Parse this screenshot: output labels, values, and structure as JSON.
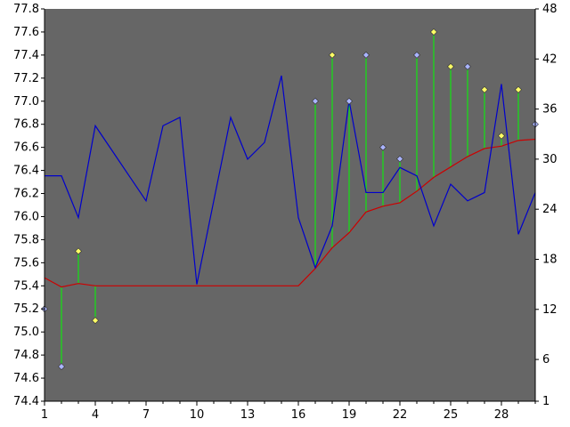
{
  "colors": {
    "background": "#ffffff",
    "plot_area": "#666666",
    "line_series": "#0000cc",
    "average_line": "#cc0000",
    "stems": "#00ff00",
    "marker_up": "#ffff66",
    "marker_down": "#aab4ff"
  },
  "chart_data": {
    "type": "line",
    "title": "",
    "xlabel": "",
    "ylabel_left": "",
    "ylabel_right": "",
    "x": [
      1,
      2,
      3,
      4,
      5,
      6,
      7,
      8,
      9,
      10,
      11,
      12,
      13,
      14,
      15,
      16,
      17,
      18,
      19,
      20,
      21,
      22,
      23,
      24,
      25,
      26,
      27,
      28,
      29,
      30
    ],
    "x_ticks": [
      1,
      4,
      7,
      10,
      13,
      16,
      19,
      22,
      25,
      28
    ],
    "x_range": [
      1,
      30
    ],
    "y_left_range": [
      74.4,
      77.8
    ],
    "y_left_ticks": [
      "74.4",
      "74.6",
      "74.8",
      "75.0",
      "75.2",
      "75.4",
      "75.6",
      "75.8",
      "76.0",
      "76.2",
      "76.4",
      "76.6",
      "76.8",
      "77.0",
      "77.2",
      "77.4",
      "77.6",
      "77.8"
    ],
    "y_right_range": [
      1,
      48
    ],
    "y_right_ticks": [
      "1",
      "6",
      "12",
      "18",
      "24",
      "30",
      "36",
      "42",
      "48"
    ],
    "grid": false,
    "legend": "none",
    "series": [
      {
        "axis": "right",
        "style": "line",
        "values": [
          28,
          28,
          23,
          34,
          31,
          28,
          25,
          34,
          35,
          15,
          25,
          35,
          30,
          32,
          40,
          23,
          17,
          22,
          37,
          26,
          26,
          29,
          28,
          22,
          27,
          25,
          26,
          39,
          21,
          26
        ]
      },
      {
        "axis": "left",
        "style": "line",
        "values": [
          75.47,
          75.39,
          75.42,
          75.4,
          75.4,
          75.4,
          75.4,
          75.4,
          75.4,
          75.4,
          75.4,
          75.4,
          75.4,
          75.4,
          75.4,
          75.4,
          75.55,
          75.73,
          75.86,
          76.04,
          76.09,
          76.12,
          76.22,
          76.34,
          76.43,
          76.52,
          76.59,
          76.61,
          76.66,
          76.67
        ]
      },
      {
        "axis": "left",
        "style": "stem-markers",
        "values": [
          75.2,
          74.7,
          75.7,
          75.1,
          null,
          null,
          null,
          null,
          null,
          null,
          null,
          null,
          null,
          null,
          null,
          null,
          77.0,
          77.4,
          77.0,
          77.4,
          76.6,
          76.5,
          77.4,
          77.6,
          77.3,
          77.3,
          77.1,
          76.7,
          77.1,
          76.8
        ],
        "marker_type": [
          "down",
          "down",
          "up",
          "up",
          null,
          null,
          null,
          null,
          null,
          null,
          null,
          null,
          null,
          null,
          null,
          null,
          "down",
          "up",
          "down",
          "down",
          "down",
          "down",
          "down",
          "up",
          "up",
          "down",
          "up",
          "up",
          "up",
          "down"
        ]
      }
    ]
  }
}
